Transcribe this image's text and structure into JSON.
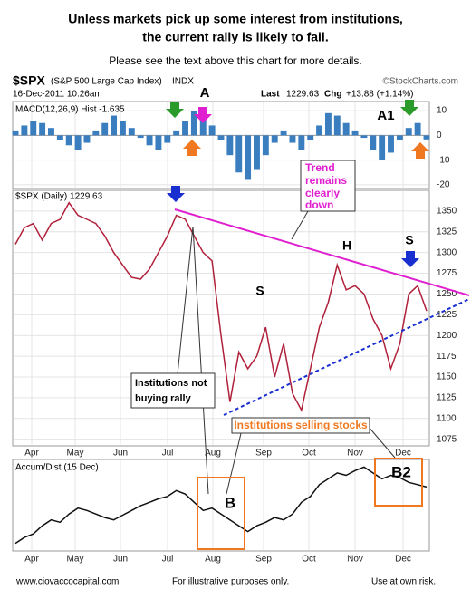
{
  "title_lines": [
    "Unless markets pick up some interest from institutions,",
    "the current rally is likely to fail."
  ],
  "subtitle": "Please see the text above this chart for more details.",
  "header": {
    "symbol": "$SPX",
    "name": "(S&P 500 Large Cap Index)",
    "exchange": "INDX",
    "source": "©StockCharts.com",
    "date": "16-Dec-2011 10:26am",
    "last_label": "Last",
    "last": 1229.63,
    "chg_label": "Chg",
    "chg": "+13.88 (+1.14%)"
  },
  "annotations": {
    "a": "A",
    "a1": "A1",
    "trend": [
      "Trend",
      "remains",
      "clearly",
      "down"
    ],
    "h": "H",
    "s1": "S",
    "s2": "S",
    "not_buying": [
      "Institutions not",
      "buying rally"
    ],
    "selling": "Institutions selling stocks",
    "b": "B",
    "b2": "B2"
  },
  "footer": [
    "www.ciovaccocapital.com",
    "For illustrative purposes only.",
    "Use at own risk."
  ],
  "chart_data": [
    {
      "type": "bar",
      "label": "MACD(12,26,9) Hist -1.635",
      "color": "#3a7ebf",
      "ylim": [
        -21.5,
        13.7
      ],
      "yticks": [
        10,
        0,
        -10,
        -20
      ],
      "values": [
        2,
        4,
        6,
        5,
        3,
        -2,
        -4,
        -6,
        -3,
        2,
        5,
        8,
        6,
        3,
        -1,
        -4,
        -6,
        -3,
        2,
        6,
        10,
        8,
        4,
        -2,
        -8,
        -15,
        -18,
        -14,
        -8,
        -3,
        2,
        -3,
        -6,
        -2,
        4,
        9,
        8,
        5,
        2,
        -1,
        -6,
        -10,
        -7,
        -2,
        3,
        5,
        -1.635
      ]
    },
    {
      "type": "line",
      "label": "$SPX (Daily) 1229.63",
      "color": "#b0203a",
      "ylim": [
        1067,
        1375
      ],
      "yticks": [
        1350,
        1325,
        1300,
        1275,
        1250,
        1225,
        1200,
        1175,
        1150,
        1125,
        1100,
        1075
      ],
      "x_labels": [
        "Apr",
        "May",
        "Jun",
        "Jul",
        "Aug",
        "Sep",
        "Oct",
        "Nov",
        "Dec"
      ],
      "values": [
        1310,
        1330,
        1335,
        1315,
        1335,
        1340,
        1360,
        1345,
        1340,
        1335,
        1320,
        1300,
        1285,
        1270,
        1268,
        1280,
        1300,
        1320,
        1345,
        1340,
        1320,
        1300,
        1290,
        1200,
        1120,
        1180,
        1160,
        1175,
        1210,
        1150,
        1190,
        1130,
        1110,
        1160,
        1210,
        1240,
        1285,
        1255,
        1260,
        1250,
        1220,
        1200,
        1160,
        1190,
        1250,
        1260,
        1229.63
      ]
    },
    {
      "type": "line",
      "label": "Accum/Dist (15 Dec)",
      "color": "#111111",
      "x_labels": [
        "Apr",
        "May",
        "Jun",
        "Jul",
        "Aug",
        "Sep",
        "Oct",
        "Nov",
        "Dec"
      ],
      "values": [
        20,
        25,
        28,
        35,
        40,
        38,
        45,
        50,
        48,
        45,
        42,
        40,
        44,
        48,
        52,
        55,
        58,
        60,
        65,
        62,
        55,
        48,
        50,
        45,
        40,
        35,
        30,
        35,
        38,
        42,
        40,
        45,
        55,
        60,
        70,
        75,
        80,
        78,
        82,
        85,
        80,
        75,
        78,
        76,
        72,
        70,
        68
      ]
    }
  ]
}
